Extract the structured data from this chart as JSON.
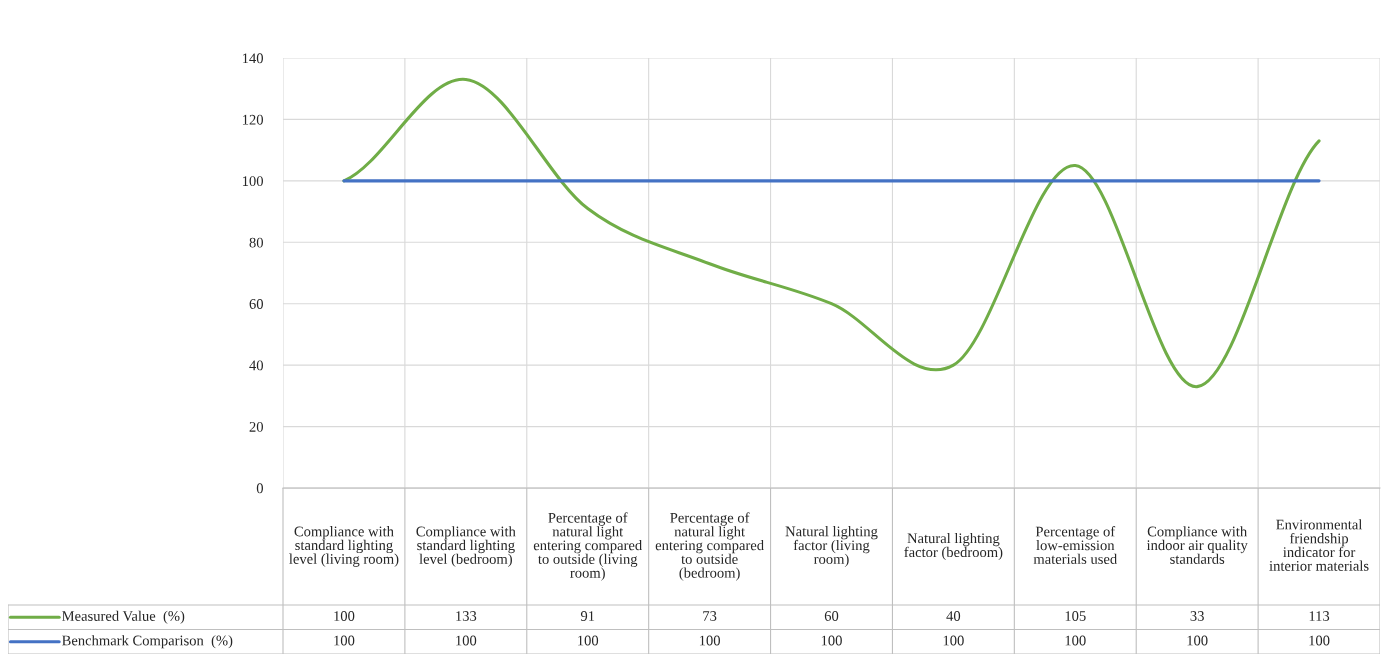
{
  "chart_data": {
    "type": "line",
    "categories": [
      "Compliance with standard lighting level (living room)",
      "Compliance with standard lighting level (bedroom)",
      "Percentage of natural light entering compared to outside (living room)",
      "Percentage of natural light entering compared to outside (bedroom)",
      "Natural lighting factor (living room)",
      "Natural lighting factor (bedroom)",
      "Percentage of low-emission materials used",
      "Compliance with indoor air quality standards",
      "Environmental friendship indicator for interior materials"
    ],
    "series": [
      {
        "name": "Measured Value  (%)",
        "color": "#70ad47",
        "values": [
          100,
          133,
          91,
          73,
          60,
          40,
          105,
          33,
          113
        ]
      },
      {
        "name": "Benchmark Comparison  (%)",
        "color": "#4472c4",
        "values": [
          100,
          100,
          100,
          100,
          100,
          100,
          100,
          100,
          100
        ]
      }
    ],
    "ylim": [
      0,
      140
    ],
    "yticks": [
      0,
      20,
      40,
      60,
      80,
      100,
      120,
      140
    ],
    "grid": "y",
    "data_labels": true,
    "legend": "bottom",
    "marker": "none",
    "line_style": "solid"
  }
}
